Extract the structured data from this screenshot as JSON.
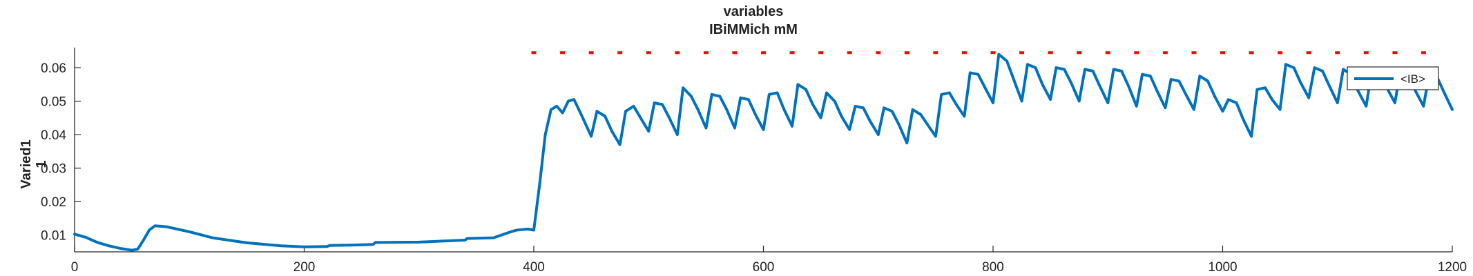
{
  "chart_data": {
    "type": "line",
    "title": [
      "variables",
      "IBiMMich mM"
    ],
    "ylabel": [
      "Varied1",
      "1"
    ],
    "xlabel": "",
    "xlim": [
      0,
      1200
    ],
    "ylim": [
      0.005,
      0.066
    ],
    "xticks": [
      0,
      200,
      400,
      600,
      800,
      1000,
      1200
    ],
    "xtick_labels": [
      "0",
      "200",
      "400",
      "600",
      "800",
      "1000",
      "1200"
    ],
    "yticks": [
      0.01,
      0.02,
      0.03,
      0.04,
      0.05,
      0.06
    ],
    "ytick_labels": [
      "0.01",
      "0.02",
      "0.03",
      "0.04",
      "0.05",
      "0.06"
    ],
    "grid": false,
    "legend": {
      "location": "top-right",
      "entries": [
        "<IB>"
      ]
    },
    "colors": {
      "series": "#0072BD",
      "markers": "#FF0000",
      "axis": "#262626"
    },
    "marker_series": {
      "style": "red dashes",
      "y": 0.0645,
      "x": [
        400,
        425,
        450,
        475,
        500,
        525,
        550,
        575,
        600,
        625,
        650,
        675,
        700,
        725,
        750,
        775,
        800,
        825,
        850,
        875,
        900,
        925,
        950,
        975,
        1000,
        1025,
        1050,
        1075,
        1100,
        1125,
        1150,
        1175
      ]
    },
    "series": [
      {
        "name": "<IB>",
        "x": [
          0,
          10,
          20,
          30,
          40,
          50,
          55,
          60,
          65,
          70,
          80,
          100,
          120,
          150,
          180,
          200,
          220,
          222,
          240,
          260,
          262,
          300,
          340,
          342,
          365,
          370,
          380,
          385,
          395,
          400,
          405,
          410,
          415,
          420,
          425,
          430,
          435,
          442,
          450,
          455,
          462,
          468,
          475,
          480,
          487,
          493,
          500,
          505,
          512,
          518,
          525,
          530,
          537,
          543,
          550,
          555,
          562,
          568,
          575,
          580,
          587,
          593,
          600,
          605,
          612,
          618,
          625,
          630,
          637,
          643,
          650,
          655,
          662,
          668,
          675,
          680,
          687,
          693,
          700,
          705,
          712,
          718,
          725,
          730,
          737,
          743,
          750,
          755,
          762,
          768,
          775,
          780,
          787,
          793,
          800,
          805,
          812,
          818,
          825,
          830,
          837,
          843,
          850,
          855,
          862,
          868,
          875,
          880,
          887,
          893,
          900,
          905,
          912,
          918,
          925,
          930,
          937,
          943,
          950,
          955,
          962,
          968,
          975,
          980,
          987,
          993,
          1000,
          1005,
          1012,
          1018,
          1025,
          1030,
          1037,
          1043,
          1050,
          1055,
          1062,
          1068,
          1075,
          1080,
          1087,
          1093,
          1100,
          1105,
          1112,
          1118,
          1125,
          1130,
          1137,
          1143,
          1150,
          1155,
          1162,
          1168,
          1175,
          1180,
          1187,
          1193,
          1200
        ],
        "y": [
          0.0103,
          0.0093,
          0.0078,
          0.0068,
          0.006,
          0.0055,
          0.0058,
          0.0085,
          0.0115,
          0.0128,
          0.0125,
          0.011,
          0.0092,
          0.0077,
          0.0068,
          0.0065,
          0.0066,
          0.0069,
          0.007,
          0.0072,
          0.0078,
          0.0079,
          0.0085,
          0.009,
          0.0092,
          0.0098,
          0.011,
          0.0115,
          0.0118,
          0.0115,
          0.025,
          0.04,
          0.0475,
          0.0485,
          0.0465,
          0.05,
          0.0505,
          0.0455,
          0.0395,
          0.047,
          0.0455,
          0.041,
          0.037,
          0.047,
          0.0485,
          0.045,
          0.041,
          0.0495,
          0.049,
          0.045,
          0.04,
          0.054,
          0.0515,
          0.0475,
          0.042,
          0.052,
          0.0515,
          0.0475,
          0.042,
          0.051,
          0.0505,
          0.046,
          0.0415,
          0.052,
          0.0525,
          0.0475,
          0.0425,
          0.055,
          0.0535,
          0.049,
          0.045,
          0.0525,
          0.05,
          0.0455,
          0.0415,
          0.0485,
          0.048,
          0.044,
          0.04,
          0.048,
          0.047,
          0.043,
          0.0375,
          0.0475,
          0.046,
          0.043,
          0.0395,
          0.052,
          0.0525,
          0.049,
          0.0455,
          0.0585,
          0.058,
          0.054,
          0.0495,
          0.064,
          0.062,
          0.0565,
          0.05,
          0.061,
          0.06,
          0.055,
          0.0505,
          0.06,
          0.0595,
          0.0555,
          0.05,
          0.0595,
          0.059,
          0.0545,
          0.0495,
          0.0595,
          0.059,
          0.0545,
          0.0485,
          0.058,
          0.0575,
          0.053,
          0.048,
          0.0565,
          0.056,
          0.052,
          0.0475,
          0.0575,
          0.056,
          0.0515,
          0.047,
          0.0505,
          0.0495,
          0.0445,
          0.0395,
          0.0535,
          0.054,
          0.0505,
          0.0475,
          0.061,
          0.06,
          0.0555,
          0.051,
          0.06,
          0.059,
          0.0545,
          0.0495,
          0.0595,
          0.058,
          0.053,
          0.0485,
          0.0595,
          0.0585,
          0.054,
          0.0495,
          0.0595,
          0.058,
          0.053,
          0.0485,
          0.0585,
          0.057,
          0.0525,
          0.0475
        ]
      }
    ]
  }
}
